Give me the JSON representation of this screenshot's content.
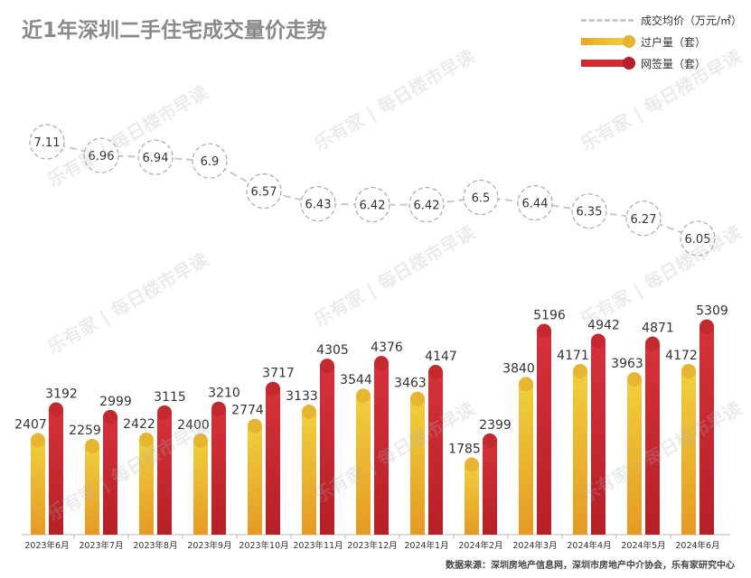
{
  "header": {
    "title": "近1年深圳二手住宅成交量价走势"
  },
  "legend": {
    "price": "成交均价（万元/㎡）",
    "transfer": "过户量（套）",
    "signed": "网签量（套）"
  },
  "colors": {
    "price": "#c8c8c8",
    "transfer": "#e8b530",
    "signed": "#c6282f",
    "text": "#333333"
  },
  "watermark": {
    "text": "每日楼市早读",
    "logo": "乐有家"
  },
  "source": "数据来源：深圳房地产信息网，深圳市房地产中介协会，乐有家研究中心",
  "chart_data": {
    "type": "bar+line",
    "title": "近1年深圳二手住宅成交量价走势",
    "categories": [
      "2023年6月",
      "2023年7月",
      "2023年8月",
      "2023年9月",
      "2023年10月",
      "2023年11月",
      "2023年12月",
      "2024年1月",
      "2024年2月",
      "2024年3月",
      "2024年4月",
      "2024年5月",
      "2024年6月"
    ],
    "series": [
      {
        "name": "过户量（套）",
        "kind": "bar",
        "values": [
          2407,
          2259,
          2422,
          2400,
          2774,
          3133,
          3544,
          3463,
          1785,
          3840,
          4171,
          3963,
          4172
        ]
      },
      {
        "name": "网签量（套）",
        "kind": "bar",
        "values": [
          3192,
          2999,
          3115,
          3210,
          3717,
          4305,
          4376,
          4147,
          2399,
          5196,
          4942,
          4871,
          5309
        ]
      },
      {
        "name": "成交均价（万元/㎡）",
        "kind": "line",
        "values": [
          7.11,
          6.96,
          6.94,
          6.9,
          6.57,
          6.43,
          6.42,
          6.42,
          6.5,
          6.44,
          6.35,
          6.27,
          6.05
        ]
      }
    ],
    "ylim_bars": [
      0,
      6000
    ],
    "ylim_price": [
      5.5,
      7.5
    ]
  }
}
